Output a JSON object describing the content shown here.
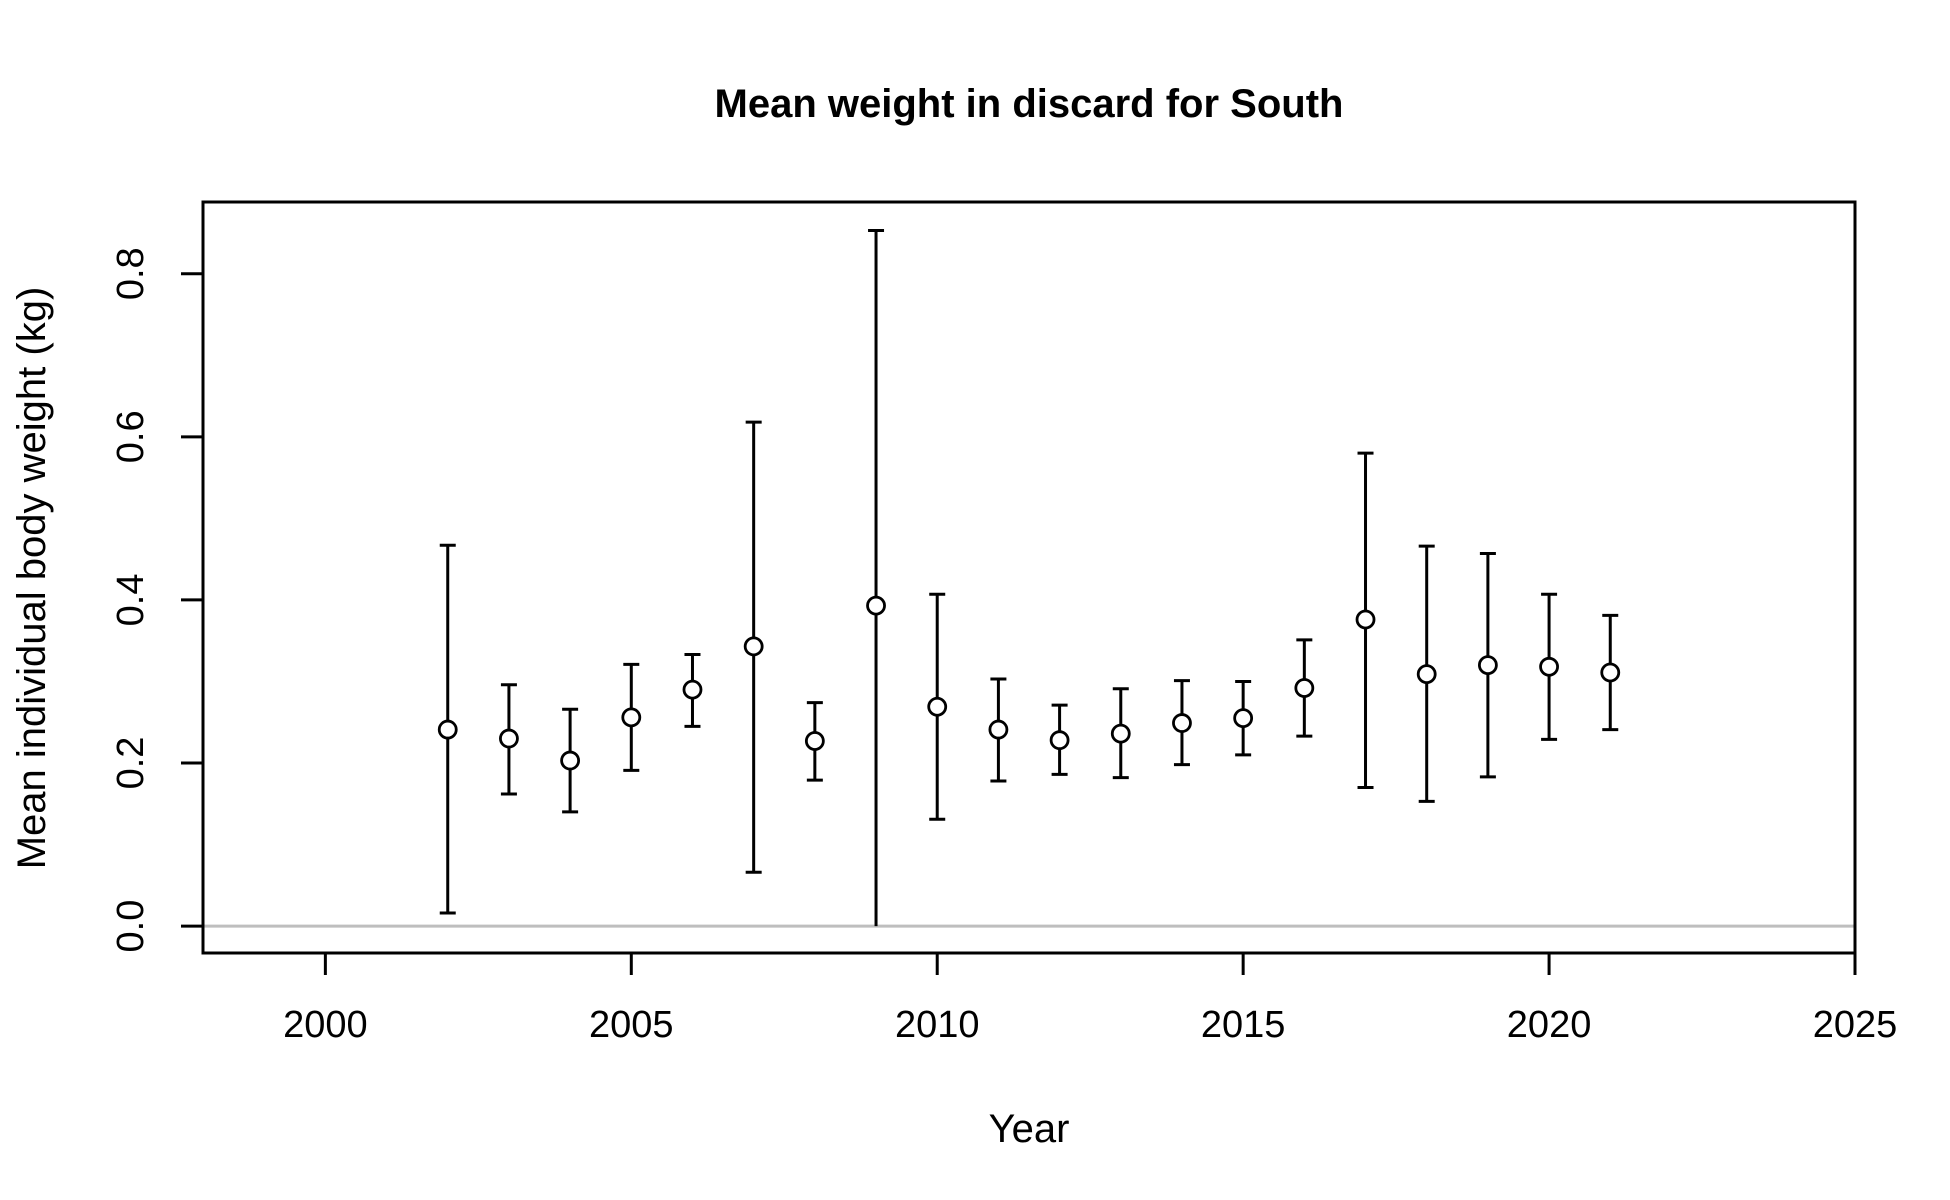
{
  "chart_data": {
    "type": "scatter",
    "title": "Mean weight in discard for South",
    "xlabel": "Year",
    "ylabel": "Mean individual body weight (kg)",
    "xlim": [
      1998,
      2025
    ],
    "ylim": [
      -0.033,
      0.888
    ],
    "x_ticks": [
      2000,
      2005,
      2010,
      2015,
      2020,
      2025
    ],
    "y_ticks": [
      0.0,
      0.2,
      0.4,
      0.6,
      0.8
    ],
    "x_tick_labels": [
      "2000",
      "2005",
      "2010",
      "2015",
      "2020",
      "2025"
    ],
    "y_tick_labels": [
      "0.0",
      "0.2",
      "0.4",
      "0.6",
      "0.8"
    ],
    "reference_line": {
      "y": 0.0,
      "color": "#bebebe"
    },
    "marker": "open-circle",
    "error_bars": true,
    "grid": false,
    "colors": {
      "points": "#000000",
      "bars": "#000000",
      "axes": "#000000"
    },
    "points": [
      {
        "x": 2002,
        "y": 0.241,
        "lower": 0.016,
        "upper": 0.467
      },
      {
        "x": 2003,
        "y": 0.23,
        "lower": 0.162,
        "upper": 0.296
      },
      {
        "x": 2004,
        "y": 0.203,
        "lower": 0.14,
        "upper": 0.266
      },
      {
        "x": 2005,
        "y": 0.256,
        "lower": 0.191,
        "upper": 0.321
      },
      {
        "x": 2006,
        "y": 0.29,
        "lower": 0.245,
        "upper": 0.333
      },
      {
        "x": 2007,
        "y": 0.343,
        "lower": 0.066,
        "upper": 0.618
      },
      {
        "x": 2008,
        "y": 0.227,
        "lower": 0.179,
        "upper": 0.274
      },
      {
        "x": 2009,
        "y": 0.393,
        "lower": 0.0,
        "upper": 0.853
      },
      {
        "x": 2010,
        "y": 0.269,
        "lower": 0.131,
        "upper": 0.407
      },
      {
        "x": 2011,
        "y": 0.241,
        "lower": 0.178,
        "upper": 0.303
      },
      {
        "x": 2012,
        "y": 0.228,
        "lower": 0.186,
        "upper": 0.271
      },
      {
        "x": 2013,
        "y": 0.236,
        "lower": 0.182,
        "upper": 0.291
      },
      {
        "x": 2014,
        "y": 0.249,
        "lower": 0.198,
        "upper": 0.301
      },
      {
        "x": 2015,
        "y": 0.255,
        "lower": 0.21,
        "upper": 0.3
      },
      {
        "x": 2016,
        "y": 0.292,
        "lower": 0.233,
        "upper": 0.351
      },
      {
        "x": 2017,
        "y": 0.376,
        "lower": 0.17,
        "upper": 0.58
      },
      {
        "x": 2018,
        "y": 0.309,
        "lower": 0.153,
        "upper": 0.466
      },
      {
        "x": 2019,
        "y": 0.32,
        "lower": 0.183,
        "upper": 0.457
      },
      {
        "x": 2020,
        "y": 0.318,
        "lower": 0.229,
        "upper": 0.407
      },
      {
        "x": 2021,
        "y": 0.311,
        "lower": 0.241,
        "upper": 0.381
      }
    ]
  }
}
